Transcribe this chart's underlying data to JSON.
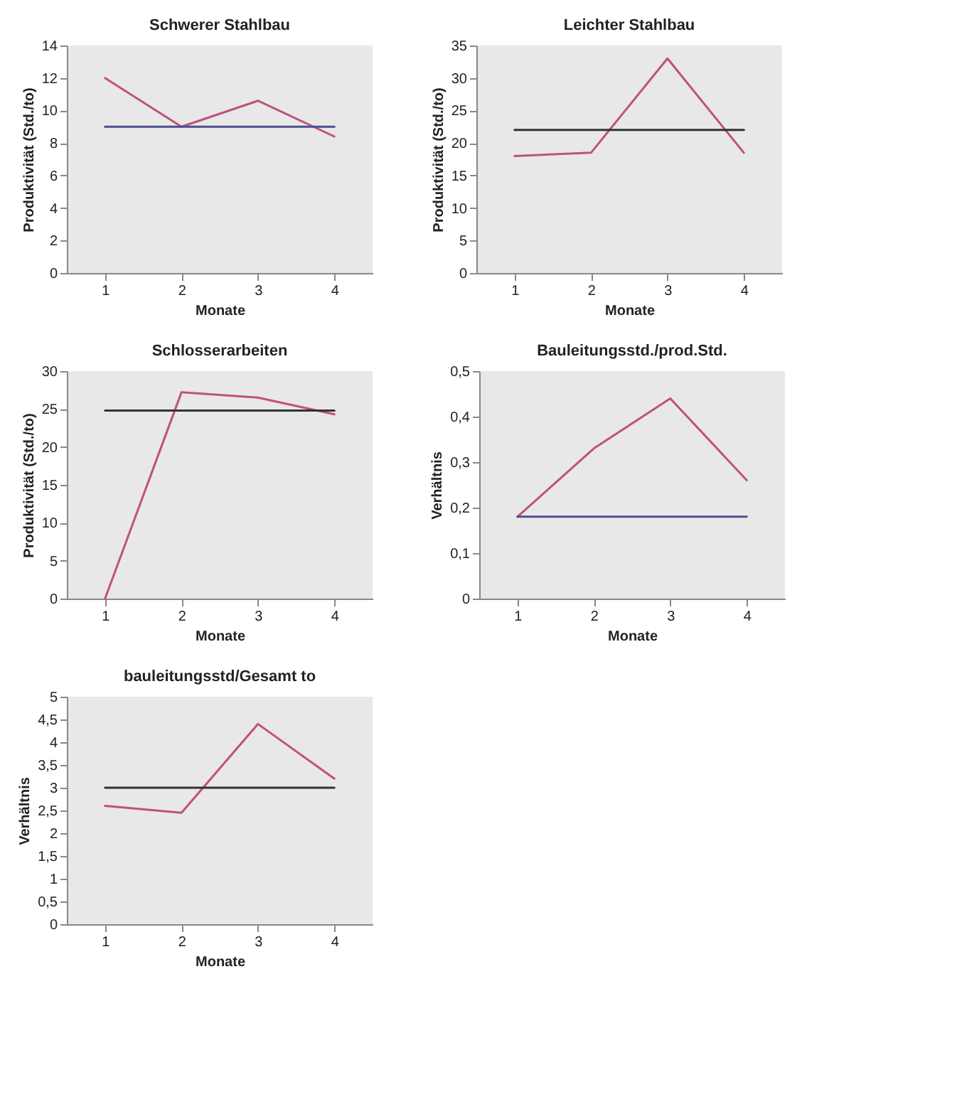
{
  "chart_data": [
    {
      "type": "line",
      "title": "Schwerer Stahlbau",
      "xlabel": "Monate",
      "ylabel": "Produktivität (Std./to)",
      "categories": [
        "1",
        "2",
        "3",
        "4"
      ],
      "series": [
        {
          "color": "#c0507e",
          "values": [
            12,
            9,
            10.6,
            8.4
          ]
        },
        {
          "color": "#4b4f8f",
          "values": [
            9,
            9,
            9,
            9
          ]
        }
      ],
      "ylim": [
        0,
        14
      ],
      "yticks": [
        0,
        2,
        4,
        6,
        8,
        10,
        12,
        14
      ]
    },
    {
      "type": "line",
      "title": "Leichter Stahlbau",
      "xlabel": "Monate",
      "ylabel": "Produktivität (Std./to)",
      "categories": [
        "1",
        "2",
        "3",
        "4"
      ],
      "series": [
        {
          "color": "#c0507e",
          "values": [
            18,
            18.5,
            33,
            18.5
          ]
        },
        {
          "color": "#333333",
          "values": [
            22,
            22,
            22,
            22
          ]
        }
      ],
      "ylim": [
        0,
        35
      ],
      "yticks": [
        0,
        5,
        10,
        15,
        20,
        25,
        30,
        35
      ]
    },
    {
      "type": "line",
      "title": "Schlosserarbeiten",
      "xlabel": "Monate",
      "ylabel": "Produktivität (Std./to)",
      "categories": [
        "1",
        "2",
        "3",
        "4"
      ],
      "series": [
        {
          "color": "#c0507e",
          "values": [
            0,
            27.2,
            26.5,
            24.3
          ]
        },
        {
          "color": "#333333",
          "values": [
            24.8,
            24.8,
            24.8,
            24.8
          ]
        }
      ],
      "ylim": [
        0,
        30
      ],
      "yticks": [
        0,
        5,
        10,
        15,
        20,
        25,
        30
      ]
    },
    {
      "type": "line",
      "title": "Bauleitungsstd./prod.Std.",
      "xlabel": "Monate",
      "ylabel": "Verhältnis",
      "categories": [
        "1",
        "2",
        "3",
        "4"
      ],
      "series": [
        {
          "color": "#c0507e",
          "values": [
            0.18,
            0.33,
            0.44,
            0.26
          ]
        },
        {
          "color": "#4b4f8f",
          "values": [
            0.18,
            0.18,
            0.18,
            0.18
          ]
        }
      ],
      "ylim": [
        0,
        0.5
      ],
      "yticks": [
        0,
        {
          "value": 0.1,
          "label": "0,1"
        },
        {
          "value": 0.2,
          "label": "0,2"
        },
        {
          "value": 0.3,
          "label": "0,3"
        },
        {
          "value": 0.4,
          "label": "0,4"
        },
        {
          "value": 0.5,
          "label": "0,5"
        }
      ]
    },
    {
      "type": "line",
      "title": "bauleitungsstd/Gesamt to",
      "xlabel": "Monate",
      "ylabel": "Verhältnis",
      "categories": [
        "1",
        "2",
        "3",
        "4"
      ],
      "series": [
        {
          "color": "#c0507e",
          "values": [
            2.6,
            2.45,
            4.4,
            3.2
          ]
        },
        {
          "color": "#333333",
          "values": [
            3,
            3,
            3,
            3
          ]
        }
      ],
      "ylim": [
        0,
        5
      ],
      "yticks": [
        0,
        {
          "value": 0.5,
          "label": "0,5"
        },
        1,
        {
          "value": 1.5,
          "label": "1,5"
        },
        2,
        {
          "value": 2.5,
          "label": "2,5"
        },
        3,
        {
          "value": 3.5,
          "label": "3,5"
        },
        4,
        {
          "value": 4.5,
          "label": "4,5"
        },
        5
      ]
    }
  ]
}
